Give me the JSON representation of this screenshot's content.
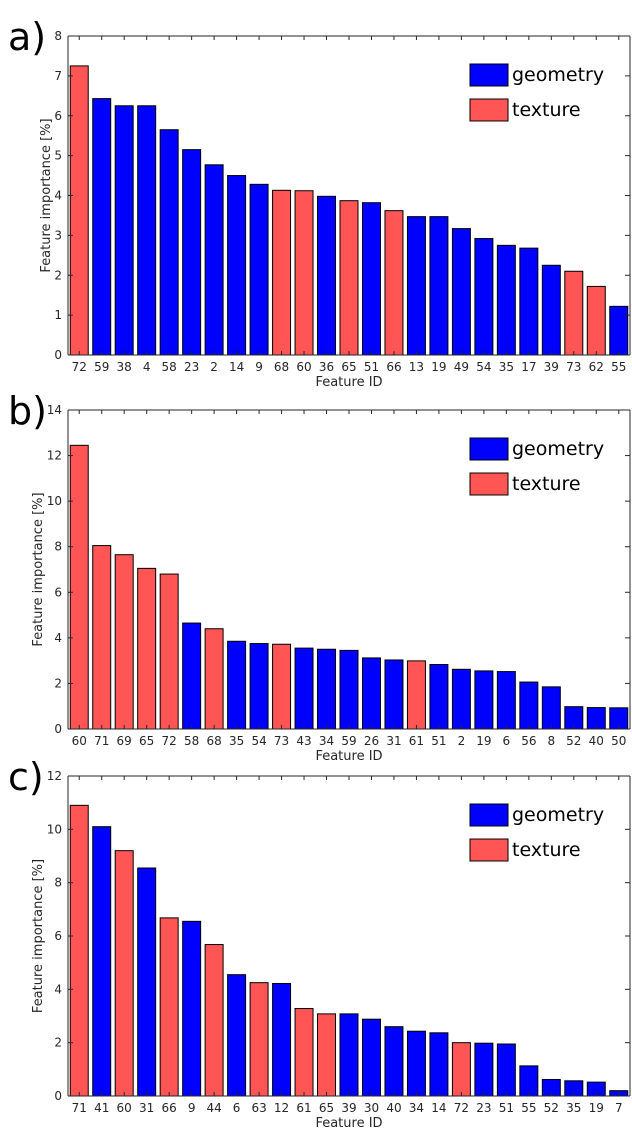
{
  "colors": {
    "geometry": "#0000ff",
    "texture": "#ff5555"
  },
  "legend": {
    "geometry": "geometry",
    "texture": "texture"
  },
  "chart_data": [
    {
      "type": "bar",
      "panel": "a)",
      "xlabel": "Feature ID",
      "ylabel": "Feature importance [%]",
      "ylim": [
        0,
        8
      ],
      "yticks": [
        0,
        1,
        2,
        3,
        4,
        5,
        6,
        7,
        8
      ],
      "legend_position": "top-right",
      "categories": [
        "72",
        "59",
        "38",
        "4",
        "58",
        "23",
        "2",
        "14",
        "9",
        "68",
        "60",
        "36",
        "65",
        "51",
        "66",
        "13",
        "19",
        "49",
        "54",
        "35",
        "17",
        "39",
        "73",
        "62",
        "55"
      ],
      "values": [
        7.25,
        6.43,
        6.25,
        6.25,
        5.65,
        5.15,
        4.77,
        4.5,
        4.28,
        4.13,
        4.12,
        3.98,
        3.87,
        3.82,
        3.62,
        3.47,
        3.47,
        3.17,
        2.92,
        2.75,
        2.68,
        2.25,
        2.1,
        1.72,
        1.22
      ],
      "groups": [
        "texture",
        "geometry",
        "geometry",
        "geometry",
        "geometry",
        "geometry",
        "geometry",
        "geometry",
        "geometry",
        "texture",
        "texture",
        "geometry",
        "texture",
        "geometry",
        "texture",
        "geometry",
        "geometry",
        "geometry",
        "geometry",
        "geometry",
        "geometry",
        "geometry",
        "texture",
        "texture",
        "geometry"
      ]
    },
    {
      "type": "bar",
      "panel": "b)",
      "xlabel": "Feature ID",
      "ylabel": "Feature importance [%]",
      "ylim": [
        0,
        14
      ],
      "yticks": [
        0,
        2,
        4,
        6,
        8,
        10,
        12,
        14
      ],
      "legend_position": "top-right",
      "categories": [
        "60",
        "71",
        "69",
        "65",
        "72",
        "58",
        "68",
        "35",
        "54",
        "73",
        "43",
        "34",
        "59",
        "26",
        "31",
        "61",
        "51",
        "2",
        "19",
        "6",
        "56",
        "8",
        "52",
        "40",
        "50"
      ],
      "values": [
        12.45,
        8.05,
        7.65,
        7.05,
        6.8,
        4.65,
        4.4,
        3.85,
        3.75,
        3.72,
        3.55,
        3.5,
        3.45,
        3.12,
        3.03,
        2.99,
        2.83,
        2.62,
        2.55,
        2.52,
        2.06,
        1.85,
        0.98,
        0.94,
        0.93
      ],
      "groups": [
        "texture",
        "texture",
        "texture",
        "texture",
        "texture",
        "geometry",
        "texture",
        "geometry",
        "geometry",
        "texture",
        "geometry",
        "geometry",
        "geometry",
        "geometry",
        "geometry",
        "texture",
        "geometry",
        "geometry",
        "geometry",
        "geometry",
        "geometry",
        "geometry",
        "geometry",
        "geometry",
        "geometry"
      ]
    },
    {
      "type": "bar",
      "panel": "c)",
      "xlabel": "Feature ID",
      "ylabel": "Feature importance [%]",
      "ylim": [
        0,
        12
      ],
      "yticks": [
        0,
        2,
        4,
        6,
        8,
        10,
        12
      ],
      "legend_position": "top-right",
      "categories": [
        "71",
        "41",
        "60",
        "31",
        "66",
        "9",
        "44",
        "6",
        "63",
        "12",
        "61",
        "65",
        "39",
        "30",
        "40",
        "34",
        "14",
        "72",
        "23",
        "51",
        "55",
        "52",
        "35",
        "19",
        "7"
      ],
      "values": [
        10.9,
        10.1,
        9.2,
        8.55,
        6.68,
        6.55,
        5.68,
        4.55,
        4.25,
        4.22,
        3.28,
        3.08,
        3.08,
        2.88,
        2.6,
        2.43,
        2.37,
        2.0,
        1.98,
        1.95,
        1.13,
        0.62,
        0.57,
        0.52,
        0.2
      ],
      "groups": [
        "texture",
        "geometry",
        "texture",
        "geometry",
        "texture",
        "geometry",
        "texture",
        "geometry",
        "texture",
        "geometry",
        "texture",
        "texture",
        "geometry",
        "geometry",
        "geometry",
        "geometry",
        "geometry",
        "texture",
        "geometry",
        "geometry",
        "geometry",
        "geometry",
        "geometry",
        "geometry",
        "geometry"
      ]
    }
  ]
}
